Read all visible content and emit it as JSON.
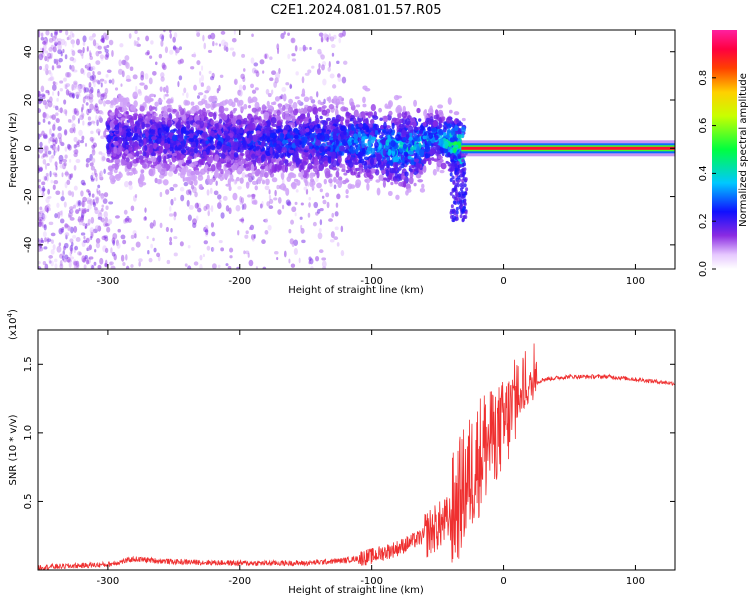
{
  "title": "C2E1.2024.081.01.57.R05",
  "chart_data": [
    {
      "type": "heatmap",
      "xlabel": "Height of straight line (km)",
      "ylabel": "Frequency (Hz)",
      "xlim": [
        -353,
        130
      ],
      "ylim": [
        -50,
        49
      ],
      "xticks": [
        -300,
        -200,
        -100,
        0,
        100
      ],
      "yticks": [
        -40,
        -20,
        0,
        20,
        40
      ],
      "colorbar": {
        "label": "Normalized spectral amplitude",
        "range": [
          0,
          1
        ],
        "ticks": [
          "0.0",
          "0.2",
          "0.4",
          "0.6",
          "0.8"
        ],
        "tick_values": [
          0,
          0.2,
          0.4,
          0.6,
          0.8
        ]
      },
      "ridge": {
        "description_values": {
          "x": [
            -300,
            -250,
            -200,
            -150,
            -100,
            -75,
            -50,
            -30,
            -15,
            0,
            10,
            130
          ],
          "center_freq": [
            5,
            4,
            3,
            3,
            2,
            -1,
            5,
            -1,
            0,
            1,
            0,
            0
          ],
          "amplitude": [
            0.2,
            0.22,
            0.22,
            0.25,
            0.3,
            0.35,
            0.3,
            0.5,
            0.75,
            0.8,
            0.85,
            0.85
          ]
        }
      }
    },
    {
      "type": "line",
      "xlabel": "Height of straight line (km)",
      "ylabel": "SNR (10 * v/v)",
      "scale_note": "(x10",
      "scale_exp": "4",
      "scale_close": ")",
      "xlim": [
        -353,
        130
      ],
      "ylim": [
        0,
        1.75
      ],
      "xticks": [
        -300,
        -200,
        -100,
        0,
        100
      ],
      "yticks": [
        0.5,
        1.0,
        1.5
      ],
      "ytick_labels": [
        "0.5",
        "1.0",
        "1.5"
      ],
      "color": "#ef3030",
      "series": [
        {
          "x": [
            -353,
            -300,
            -280,
            -250,
            -200,
            -150,
            -120,
            -100,
            -80,
            -60,
            -40,
            -30,
            -20,
            -15,
            -10,
            -5,
            0,
            10,
            20,
            30,
            50,
            80,
            90,
            100,
            130
          ],
          "y": [
            0.02,
            0.04,
            0.08,
            0.06,
            0.05,
            0.05,
            0.07,
            0.1,
            0.16,
            0.25,
            0.38,
            0.6,
            0.8,
            0.9,
            0.95,
            1.0,
            1.05,
            1.2,
            1.34,
            1.39,
            1.41,
            1.41,
            1.4,
            1.39,
            1.36
          ]
        }
      ]
    }
  ]
}
